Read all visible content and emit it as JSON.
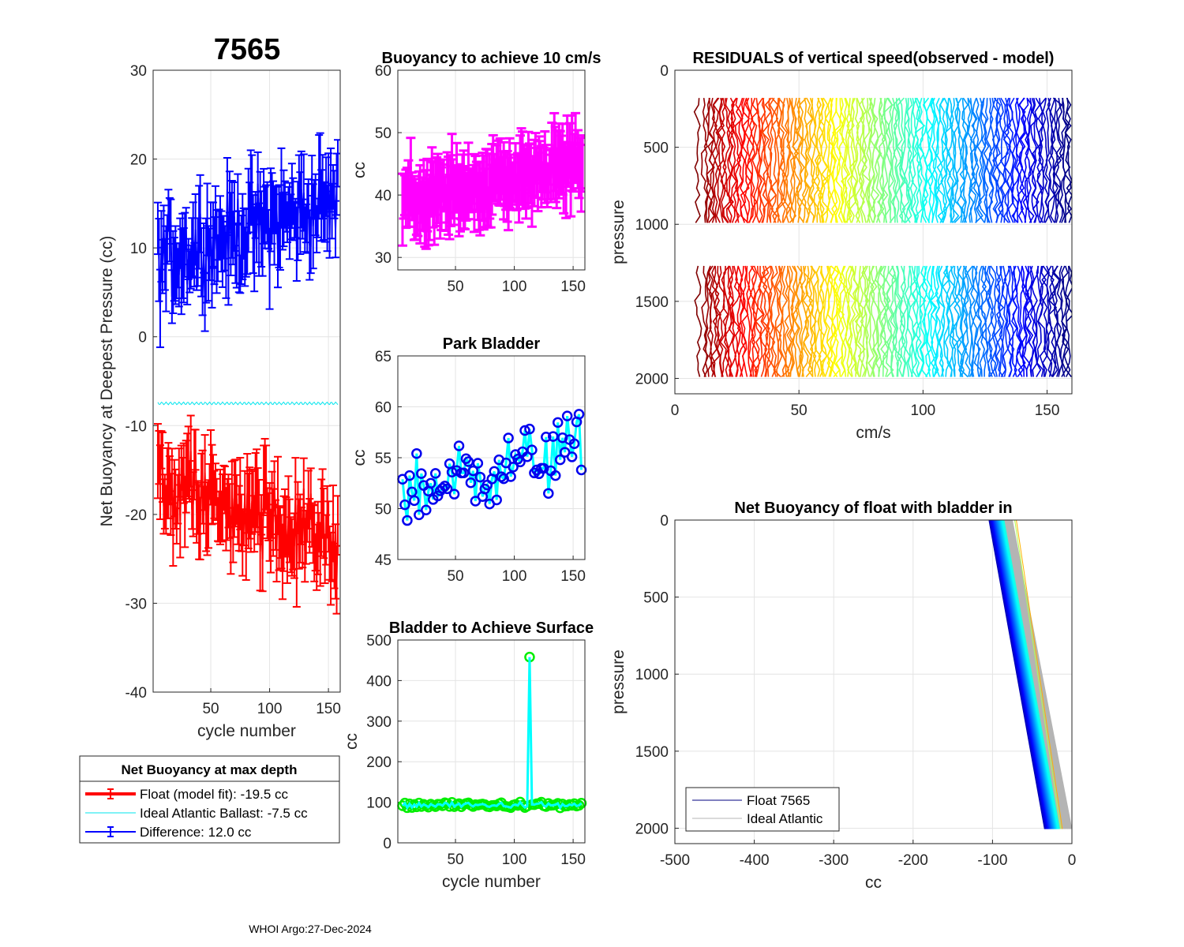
{
  "figure": {
    "float_id": "7565",
    "footer": "WHOI Argo:27-Dec-2024"
  },
  "chart_data": [
    {
      "id": "net_buoyancy",
      "type": "line",
      "title": "",
      "xlabel": "cycle number",
      "ylabel": "Net Buoyancy at Deepest Pressure (cc)",
      "xlim": [
        1,
        160
      ],
      "ylim": [
        -40,
        30
      ],
      "xticks": [
        50,
        100,
        150
      ],
      "yticks": [
        -40,
        -30,
        -20,
        -10,
        0,
        10,
        20,
        30
      ],
      "grid": true,
      "series": [
        {
          "name": "Float (model fit)",
          "color": "#ff0000",
          "errorbars": true,
          "center": -19.5,
          "trend": -0.045,
          "noise": 4.0,
          "err": 3.2
        },
        {
          "name": "Ideal Atlantic Ballast",
          "color": "#00e5ee",
          "errorbars": false,
          "center": -7.5,
          "trend": 0,
          "noise": 0.15,
          "err": 0
        },
        {
          "name": "Difference",
          "color": "#0000ff",
          "errorbars": true,
          "center": 12.0,
          "trend": 0.045,
          "noise": 4.0,
          "err": 3.5
        }
      ],
      "legend": {
        "title": "Net Buoyancy at max depth",
        "entries": [
          "Float (model fit): -19.5 cc",
          "Ideal Atlantic Ballast:  -7.5 cc",
          "Difference:  12.0 cc"
        ]
      }
    },
    {
      "id": "buoyancy_10cms",
      "type": "line",
      "title": "Buoyancy to achieve 10 cm/s",
      "xlabel": "",
      "ylabel": "cc",
      "xlim": [
        1,
        160
      ],
      "ylim": [
        28,
        60
      ],
      "xticks": [
        50,
        100,
        150
      ],
      "yticks": [
        30,
        40,
        50,
        60
      ],
      "grid": true,
      "series": [
        {
          "name": "buoyancy",
          "color": "#ff00ff",
          "center": 38.5,
          "trend": 0.045,
          "noise": 3.0,
          "err": 4.5
        }
      ]
    },
    {
      "id": "park_bladder",
      "type": "line",
      "title": "Park Bladder",
      "xlabel": "",
      "ylabel": "cc",
      "xlim": [
        1,
        160
      ],
      "ylim": [
        45,
        65
      ],
      "xticks": [
        50,
        100,
        150
      ],
      "yticks": [
        45,
        50,
        55,
        60,
        65
      ],
      "grid": true,
      "series": [
        {
          "name": "park",
          "line_color": "#00ffff",
          "marker_color": "#0000ee",
          "center": 51.5,
          "trend": 0.03,
          "noise": 3.0
        }
      ]
    },
    {
      "id": "bladder_surface",
      "type": "line",
      "title": "Bladder to Achieve Surface",
      "xlabel": "cycle number",
      "ylabel": "cc",
      "xlim": [
        1,
        160
      ],
      "ylim": [
        0,
        500
      ],
      "xticks": [
        50,
        100,
        150
      ],
      "yticks": [
        0,
        100,
        200,
        300,
        400,
        500
      ],
      "grid": true,
      "series": [
        {
          "name": "surface",
          "line_color": "#00ffff",
          "marker_color": "#00ee00",
          "center": 93,
          "noise": 6,
          "spike_cycle": 113,
          "spike_value": 458
        }
      ]
    },
    {
      "id": "residuals",
      "type": "line",
      "title": "RESIDUALS of vertical speed(observed - model)",
      "xlabel": "cm/s",
      "ylabel": "pressure",
      "xlim": [
        0,
        160
      ],
      "ylim": [
        0,
        2100
      ],
      "xticks": [
        0,
        50,
        100,
        150
      ],
      "yticks": [
        0,
        500,
        1000,
        1500,
        2000
      ],
      "y_reversed": true,
      "grid": true,
      "profile_count": 155,
      "segments": [
        [
          180,
          1010
        ],
        [
          1270,
          1990
        ]
      ]
    },
    {
      "id": "net_buoyancy_profile",
      "type": "line",
      "title": "Net Buoyancy of float with bladder in",
      "xlabel": "cc",
      "ylabel": "pressure",
      "xlim": [
        -500,
        0
      ],
      "ylim": [
        0,
        2100
      ],
      "xticks": [
        -500,
        -400,
        -300,
        -200,
        -100,
        0
      ],
      "yticks": [
        0,
        500,
        1000,
        1500,
        2000
      ],
      "y_reversed": true,
      "grid": true,
      "series": [
        {
          "name": "Float 7565",
          "color": "#000080",
          "x_top": -95,
          "x_bottom": -25
        },
        {
          "name": "Ideal Atlantic",
          "color": "#b4b4b4",
          "x_top": -85,
          "x_bottom": -10
        }
      ],
      "legend": {
        "entries": [
          "Float 7565",
          "Ideal Atlantic"
        ]
      }
    }
  ]
}
